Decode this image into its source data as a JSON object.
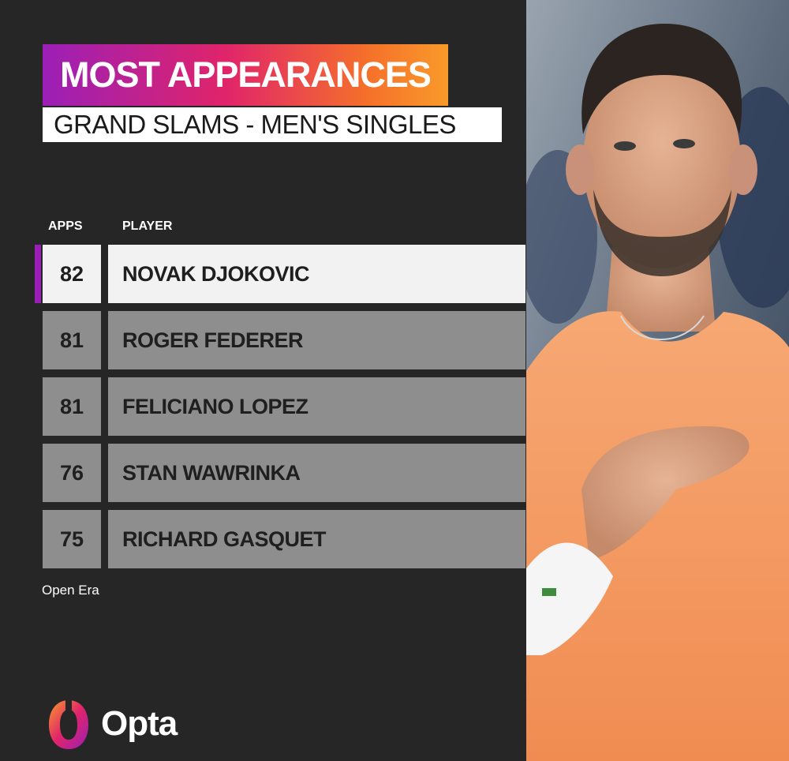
{
  "header": {
    "title": "MOST APPEARANCES",
    "subtitle": "GRAND SLAMS - MEN'S SINGLES"
  },
  "table": {
    "columns": [
      "APPS",
      "PLAYER"
    ],
    "rows": [
      {
        "apps": "82",
        "player": "NOVAK DJOKOVIC",
        "highlighted": true
      },
      {
        "apps": "81",
        "player": "ROGER FEDERER",
        "highlighted": false
      },
      {
        "apps": "81",
        "player": "FELICIANO LOPEZ",
        "highlighted": false
      },
      {
        "apps": "76",
        "player": "STAN WAWRINKA",
        "highlighted": false
      },
      {
        "apps": "75",
        "player": "RICHARD GASQUET",
        "highlighted": false
      }
    ]
  },
  "footnote": "Open Era",
  "brand": {
    "name": "Opta",
    "gradient_colors": [
      "#9b1fb7",
      "#e0246a",
      "#f5702a",
      "#f99a2a"
    ],
    "highlight_accent": "#9b1fb7"
  },
  "photo": {
    "icon": "player-photo"
  }
}
